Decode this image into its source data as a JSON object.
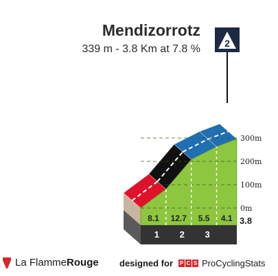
{
  "header": {
    "title": "Mendizorrotz",
    "subtitle": "339 m - 3.8 Km at 7.8 %",
    "category_badge": "2"
  },
  "footer": {
    "brand_prefix": "La Flamme",
    "brand_suffix": "Rouge",
    "designed_for": "designed for",
    "pcs_badge": [
      "P",
      "C",
      "S"
    ],
    "pcs_name": "ProCyclingStats"
  },
  "chart_data": {
    "type": "area",
    "title": "Mendizorrotz",
    "subtitle": "339 m - 3.8 Km at 7.8 %",
    "total_distance_km": 3.8,
    "total_distance_label": "3.8",
    "y_ticks": [
      {
        "value": 0,
        "label": "0m"
      },
      {
        "value": 100,
        "label": "100m"
      },
      {
        "value": 200,
        "label": "200m"
      },
      {
        "value": 300,
        "label": "300m"
      }
    ],
    "km_markers": [
      "1",
      "2",
      "3"
    ],
    "segments": [
      {
        "gradient": 8.1,
        "gradient_label": "8.1",
        "color": "#e1112b"
      },
      {
        "gradient": 12.7,
        "gradient_label": "12.7",
        "color": "#111111"
      },
      {
        "gradient": 5.5,
        "gradient_label": "5.5",
        "color": "#1f6fb2"
      },
      {
        "gradient": 4.1,
        "gradient_label": "4.1",
        "color": "#1f6fb2"
      }
    ],
    "fill_color": "#8dc63f",
    "base_color": "#c8b4a0",
    "strip_color": "#333333"
  }
}
